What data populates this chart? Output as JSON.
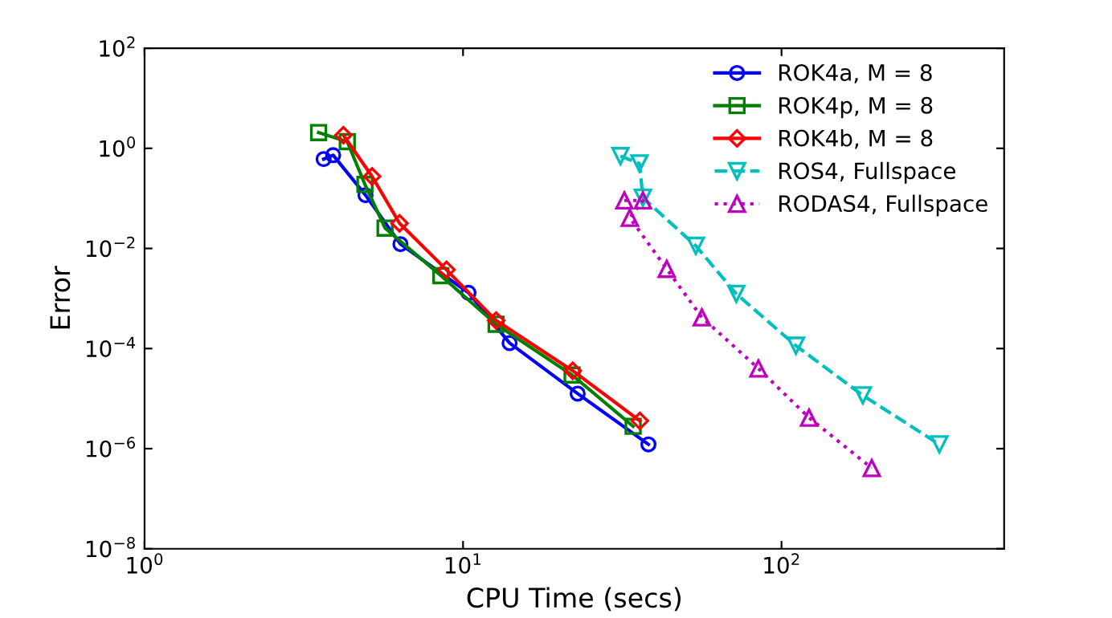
{
  "chart_data": {
    "type": "line",
    "xlabel": "CPU Time (secs)",
    "ylabel": "Error",
    "log": "xy",
    "grid": false,
    "legend": "top right",
    "xlim": [
      1,
      500
    ],
    "xticks": [
      {
        "value": 1,
        "label": "10$^{0}$"
      },
      {
        "value": 10,
        "label": "10$^{1}$"
      },
      {
        "value": 100,
        "label": "10$^{2}$"
      }
    ],
    "ylim": [
      1e-08,
      100
    ],
    "yticks": [
      {
        "value": 1e-08,
        "label": "10$^{−8}$"
      },
      {
        "value": 1e-06,
        "label": "10$^{−6}$"
      },
      {
        "value": 0.0001,
        "label": "10$^{−4}$"
      },
      {
        "value": 0.01,
        "label": "10$^{−2}$"
      },
      {
        "value": 1,
        "label": "10$^{0}$"
      },
      {
        "value": 100,
        "label": "10$^{2}$"
      }
    ],
    "series": [
      {
        "name": "ROK4a, M = 8",
        "color": "#0000ff",
        "marker": "circle",
        "line_style": "solid",
        "x": [
          3.65,
          3.91,
          4.94,
          6.36,
          10.4,
          14.0,
          22.9,
          38.2
        ],
        "values": [
          0.61,
          0.73,
          0.116,
          0.0122,
          0.0013,
          0.000129,
          1.26e-05,
          1.22e-06
        ]
      },
      {
        "name": "ROK4p, M = 8",
        "color": "#008000",
        "marker": "square",
        "line_style": "solid",
        "x": [
          3.52,
          4.33,
          4.92,
          5.69,
          8.52,
          12.7,
          22.0,
          34.2
        ],
        "values": [
          2.06,
          1.36,
          0.19,
          0.0255,
          0.00286,
          0.000306,
          2.96e-05,
          2.8e-06
        ]
      },
      {
        "name": "ROK4b, M = 8",
        "color": "#ff0000",
        "marker": "diamond",
        "line_style": "solid",
        "x": [
          4.21,
          5.18,
          6.32,
          8.87,
          12.7,
          22.1,
          35.9
        ],
        "values": [
          1.83,
          0.275,
          0.0318,
          0.00375,
          0.000363,
          3.6e-05,
          3.6e-06
        ]
      },
      {
        "name": "ROS4, Fullspace",
        "color": "#00bfbf",
        "marker": "triangle_down",
        "line_style": "dashed",
        "x": [
          31.2,
          35.8,
          36.7,
          53.8,
          72.1,
          111,
          180,
          313
        ],
        "values": [
          0.7,
          0.5,
          0.103,
          0.0113,
          0.00124,
          0.000114,
          1.16e-05,
          1.22e-06
        ]
      },
      {
        "name": "RODAS4, Fullspace",
        "color": "#bf00bf",
        "marker": "triangle",
        "line_style": "dotted",
        "x": [
          32.1,
          36.7,
          33.4,
          43.6,
          56.2,
          84.6,
          122,
          192
        ],
        "values": [
          0.091,
          0.091,
          0.041,
          0.0039,
          0.00042,
          4e-05,
          4.15e-06,
          4.1e-07
        ]
      }
    ]
  }
}
